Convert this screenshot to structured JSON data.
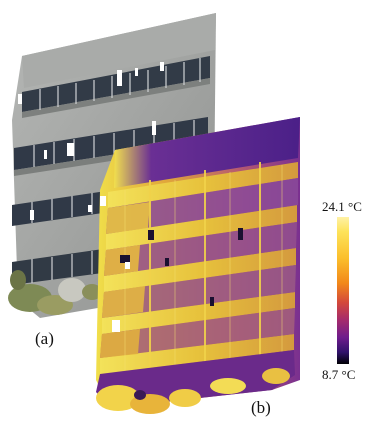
{
  "figure": {
    "panel_a_label": "(a)",
    "panel_b_label": "(b)"
  },
  "colorbar": {
    "max_label": "24.1 °C",
    "min_label": "8.7 °C",
    "max_value": 24.1,
    "min_value": 8.7,
    "unit": "°C",
    "colors": [
      "#fff2a6",
      "#fde35a",
      "#fbbf2c",
      "#f2881a",
      "#d4493a",
      "#a52b6c",
      "#6e1c8c",
      "#30126b",
      "#000004"
    ]
  },
  "colors": {
    "facade_gray": "#9ea09e",
    "window_dark": "#2f3a4a",
    "foliage": "#8a8f5a",
    "thermal_warm": "#e9d24a",
    "thermal_cool": "#5a2a8c"
  }
}
